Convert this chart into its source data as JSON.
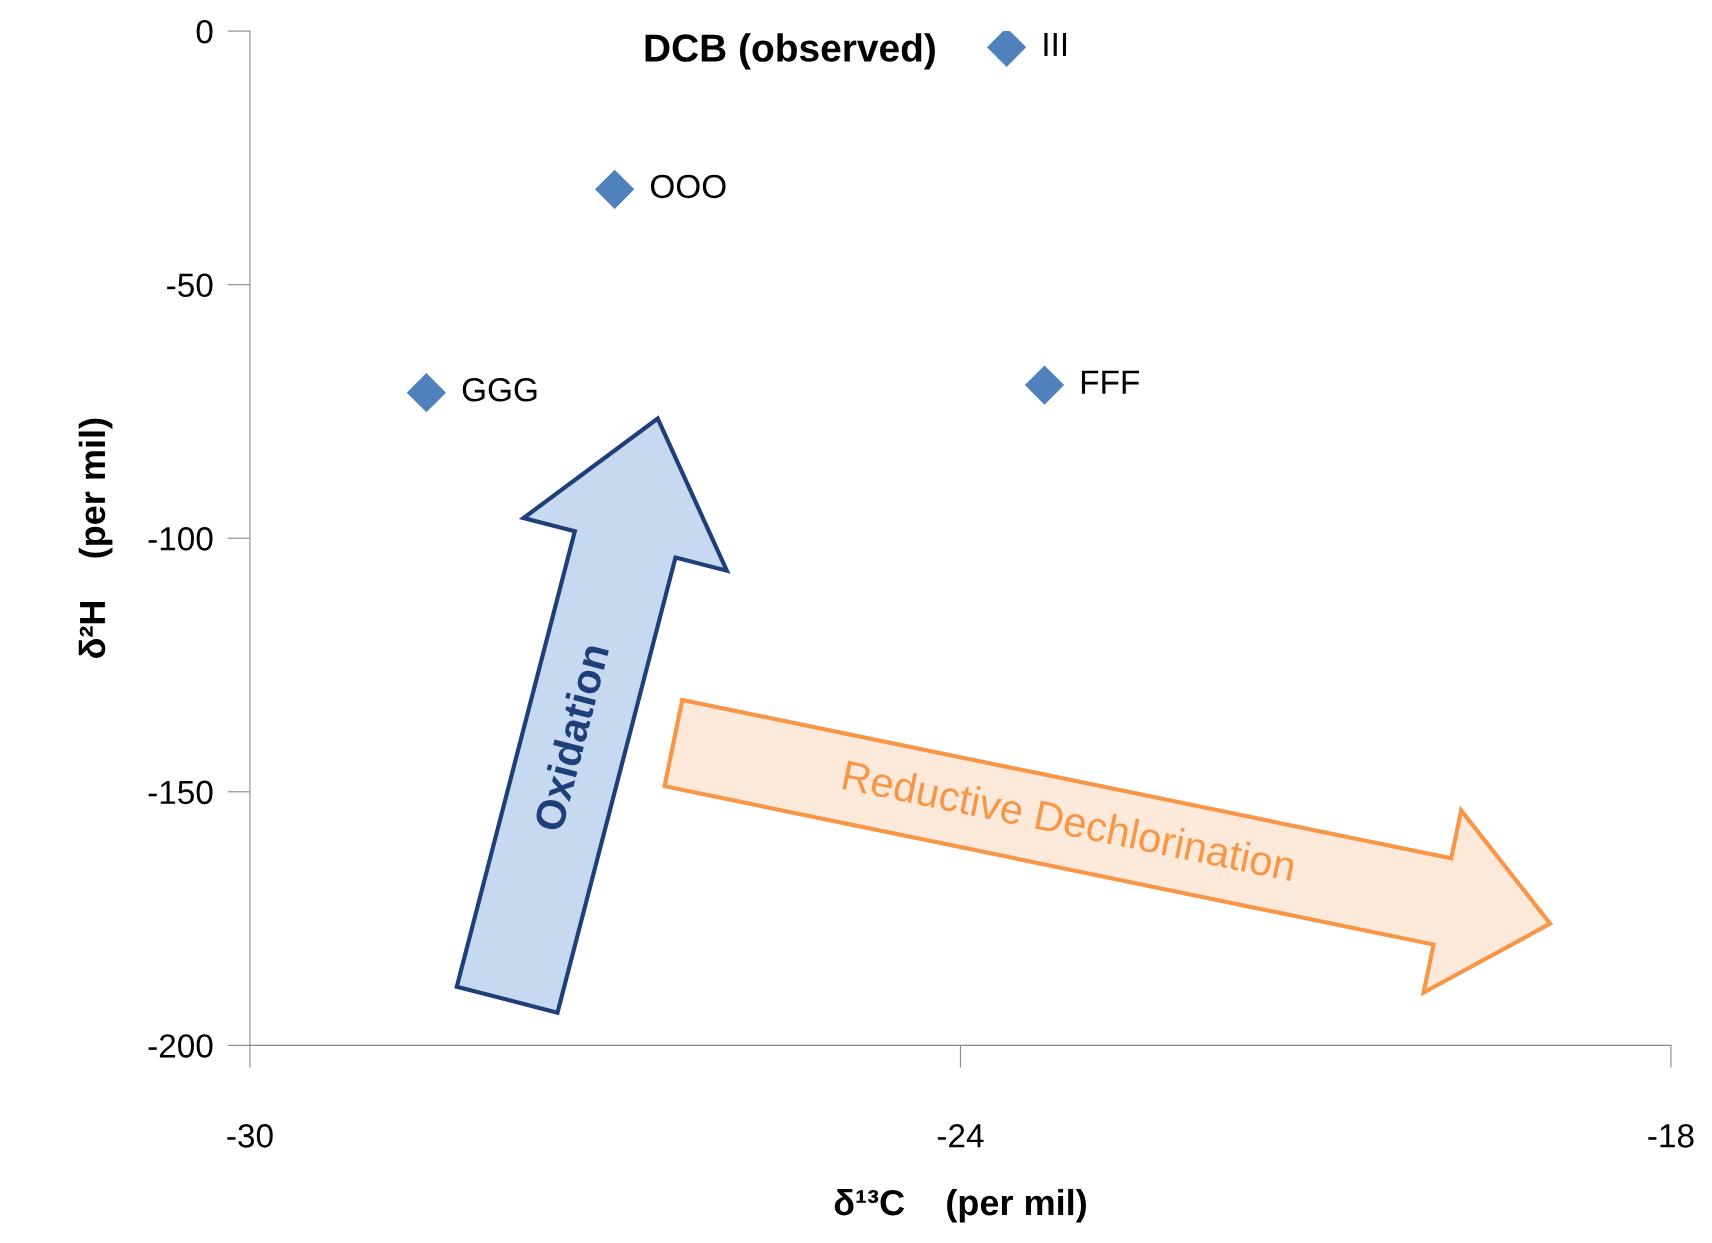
{
  "chart_data": {
    "type": "scatter",
    "title": "DCB (observed)",
    "xlabel": "δ¹³C    (per mil)",
    "ylabel": "δ²H    (per mil)",
    "x": [
      -23.61,
      -26.92,
      -28.51,
      -23.29
    ],
    "series": [
      {
        "color": "#4f81bd",
        "values": [
          -3.2,
          -31.2,
          -71.3,
          -69.8
        ]
      }
    ],
    "marker": "diamond",
    "xlim": [
      -30,
      -18
    ],
    "xticks": [
      -30,
      -24,
      -18
    ],
    "ylim": [
      -200,
      0
    ],
    "yticks": [
      0,
      -50,
      -100,
      -150,
      -200
    ],
    "grid": false,
    "legend": false,
    "annotations": [
      {
        "text": "III",
        "x": -23.61,
        "y": -3.2
      },
      {
        "text": "OOO",
        "x": -26.92,
        "y": -31.2
      },
      {
        "text": "GGG",
        "x": -28.51,
        "y": -71.3
      },
      {
        "text": "FFF",
        "x": -23.29,
        "y": -69.8
      },
      "Oxidation",
      "Reductive Dechlorination"
    ]
  }
}
